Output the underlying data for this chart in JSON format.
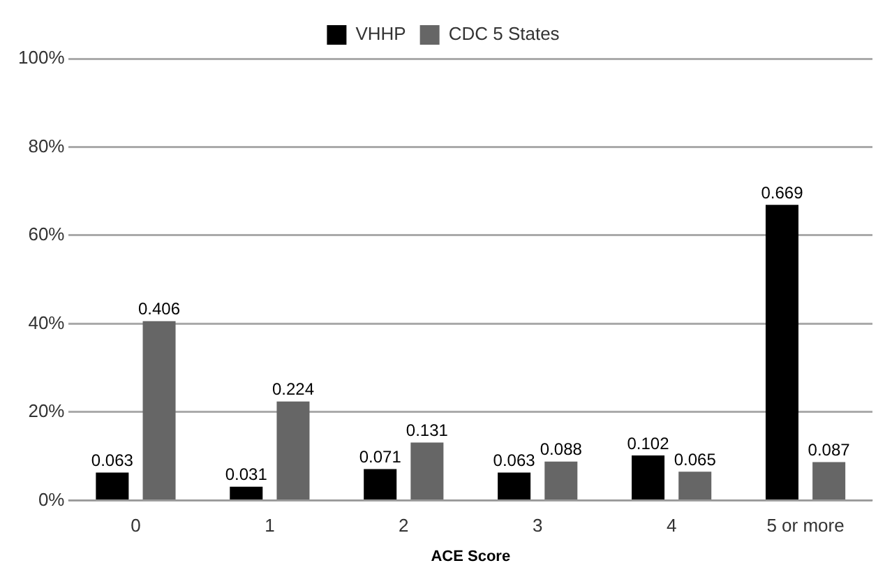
{
  "chart_data": {
    "type": "bar",
    "xlabel": "ACE Score",
    "categories": [
      "0",
      "1",
      "2",
      "3",
      "4",
      "5 or more"
    ],
    "series": [
      {
        "name": "VHHP",
        "color": "#000000",
        "values": [
          0.063,
          0.031,
          0.071,
          0.063,
          0.102,
          0.669
        ]
      },
      {
        "name": "CDC 5 States",
        "color": "#666666",
        "values": [
          0.406,
          0.224,
          0.131,
          0.088,
          0.065,
          0.087
        ]
      }
    ],
    "ylim": [
      0,
      1
    ],
    "yticks": [
      {
        "value": 0,
        "label": "0%"
      },
      {
        "value": 0.2,
        "label": "20%"
      },
      {
        "value": 0.4,
        "label": "40%"
      },
      {
        "value": 0.6,
        "label": "60%"
      },
      {
        "value": 0.8,
        "label": "80%"
      },
      {
        "value": 1,
        "label": "100%"
      }
    ],
    "grid": "y",
    "legend": "top",
    "data_labels": true
  }
}
